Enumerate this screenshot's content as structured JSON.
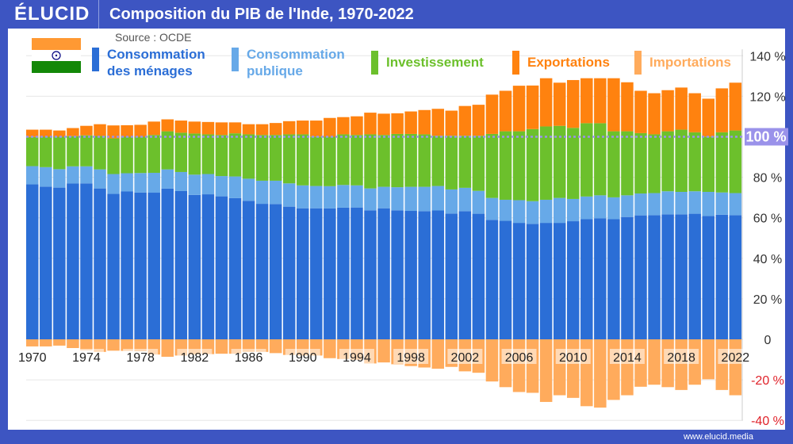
{
  "header": {
    "logo": "ÉLUCID",
    "title": "Composition du PIB de l'Inde, 1970-2022"
  },
  "source": "Source : OCDE",
  "footer": "www.elucid.media",
  "chart_data": {
    "type": "bar",
    "stacked": true,
    "title": "Composition du PIB de l'Inde, 1970-2022",
    "xlabel": "",
    "ylabel": "",
    "ylim": [
      -40,
      140
    ],
    "grid": true,
    "legend": "top",
    "y_ticks": [
      "140 %",
      "120 %",
      "100 %",
      "80 %",
      "60 %",
      "40 %",
      "20 %",
      "0",
      "-20 %",
      "-40 %"
    ],
    "y_tick_values": [
      140,
      120,
      100,
      80,
      60,
      40,
      20,
      0,
      -20,
      -40
    ],
    "reference_line": {
      "value": 100,
      "label": "100 %",
      "color": "#9a92ea"
    },
    "x_tick_labels": [
      "1970",
      "1974",
      "1978",
      "1982",
      "1986",
      "1990",
      "1994",
      "1998",
      "2002",
      "2006",
      "2010",
      "2014",
      "2018",
      "2022"
    ],
    "categories": [
      1970,
      1971,
      1972,
      1973,
      1974,
      1975,
      1976,
      1977,
      1978,
      1979,
      1980,
      1981,
      1982,
      1983,
      1984,
      1985,
      1986,
      1987,
      1988,
      1989,
      1990,
      1991,
      1992,
      1993,
      1994,
      1995,
      1996,
      1997,
      1998,
      1999,
      2000,
      2001,
      2002,
      2003,
      2004,
      2005,
      2006,
      2007,
      2008,
      2009,
      2010,
      2011,
      2012,
      2013,
      2014,
      2015,
      2016,
      2017,
      2018,
      2019,
      2020,
      2021,
      2022
    ],
    "series": [
      {
        "name": "Consommation des ménages",
        "color": "#2b6ed6",
        "values": [
          76.5,
          75.4,
          74.9,
          76.9,
          77,
          74.5,
          71.8,
          73,
          72.5,
          72.4,
          74.4,
          73.2,
          71.3,
          71.6,
          70.6,
          69.7,
          68.4,
          66.9,
          66.8,
          65.5,
          64.7,
          64.7,
          64.6,
          65,
          65.1,
          63.7,
          64.7,
          63.7,
          63.4,
          63.3,
          63.6,
          62.1,
          63.3,
          62,
          59,
          58.5,
          57.5,
          57,
          57.5,
          57.5,
          58.3,
          59.3,
          59.7,
          59.3,
          60.4,
          61.2,
          61.3,
          61.7,
          61.7,
          62,
          60.9,
          61.5,
          61.3
        ]
      },
      {
        "name": "Consommation publique",
        "color": "#67a9e8",
        "values": [
          9.0,
          9.6,
          9.1,
          8.5,
          8.4,
          9.4,
          9.8,
          9.0,
          9.6,
          9.8,
          9.5,
          9.4,
          10.0,
          10.0,
          10.0,
          10.7,
          10.9,
          11.4,
          11.5,
          11.5,
          11.3,
          11.0,
          11.0,
          11.2,
          10.9,
          10.8,
          10.6,
          11.4,
          11.9,
          12.0,
          12.1,
          11.9,
          11.5,
          11.3,
          10.8,
          10.4,
          11.2,
          11.2,
          11.4,
          12.3,
          11.0,
          11.2,
          11.4,
          10.8,
          10.7,
          10.8,
          10.9,
          11.4,
          11.1,
          11.1,
          11.9,
          11.0,
          10.9
        ]
      },
      {
        "name": "Investissement",
        "color": "#6cc02c",
        "values": [
          14.4,
          15.0,
          16.0,
          14.9,
          15.3,
          16.5,
          17.6,
          18.0,
          17.9,
          18.7,
          18.8,
          19.4,
          20.3,
          19.6,
          20.3,
          21.3,
          21.9,
          22.6,
          22.6,
          24.2,
          25.2,
          24.4,
          24.4,
          25.0,
          24.9,
          26.7,
          25.6,
          26.3,
          26.1,
          25.9,
          24.8,
          26.5,
          25.7,
          27.2,
          31.6,
          33.8,
          34.0,
          35.6,
          36.2,
          35.6,
          35.1,
          36.2,
          35.6,
          32.6,
          31.6,
          29.8,
          29.0,
          29.6,
          30.7,
          29.1,
          27.3,
          29.7,
          30.9
        ]
      },
      {
        "name": "Exportations",
        "color": "#ff820f",
        "values": [
          3.6,
          3.5,
          3.1,
          4.0,
          4.7,
          5.8,
          6.4,
          5.7,
          5.9,
          6.6,
          5.9,
          6.0,
          5.9,
          6.1,
          6.2,
          5.4,
          5.0,
          5.3,
          5.9,
          6.5,
          6.8,
          7.9,
          9.3,
          8.5,
          9.2,
          10.7,
          10.5,
          10.2,
          11.1,
          12.0,
          13.3,
          12.4,
          14.7,
          15.3,
          19.4,
          20.0,
          22.5,
          21.5,
          23.8,
          21.3,
          23.6,
          22.2,
          22.2,
          26.2,
          24.2,
          20.9,
          20.3,
          20.3,
          20.8,
          19.3,
          18.7,
          21.7,
          23.6
        ]
      },
      {
        "name": "Importations",
        "color": "#ffab5c",
        "values": [
          -3.5,
          -3.5,
          -3.1,
          -4.3,
          -5.4,
          -6.2,
          -5.6,
          -5.7,
          -5.9,
          -7.5,
          -8.6,
          -8.0,
          -7.5,
          -7.3,
          -7.1,
          -7.1,
          -6.2,
          -6.2,
          -6.8,
          -7.7,
          -8.0,
          -8.0,
          -9.3,
          -9.7,
          -10.1,
          -11.9,
          -11.4,
          -12.3,
          -13.2,
          -13.9,
          -14.5,
          -13.6,
          -15.8,
          -16.5,
          -20.8,
          -23.6,
          -26.0,
          -26.4,
          -30.9,
          -27.6,
          -28.9,
          -33.0,
          -33.7,
          -29.9,
          -27.6,
          -23.4,
          -22.4,
          -23.6,
          -25.0,
          -22.4,
          -19.7,
          -25.0,
          -27.6
        ]
      }
    ]
  },
  "legend": [
    {
      "label_line1": "Consommation",
      "label_line2": "des ménages"
    },
    {
      "label_line1": "Consommation",
      "label_line2": "publique"
    },
    {
      "label_line1": "Investissement"
    },
    {
      "label_line1": "Exportations"
    },
    {
      "label_line1": "Importations"
    }
  ]
}
